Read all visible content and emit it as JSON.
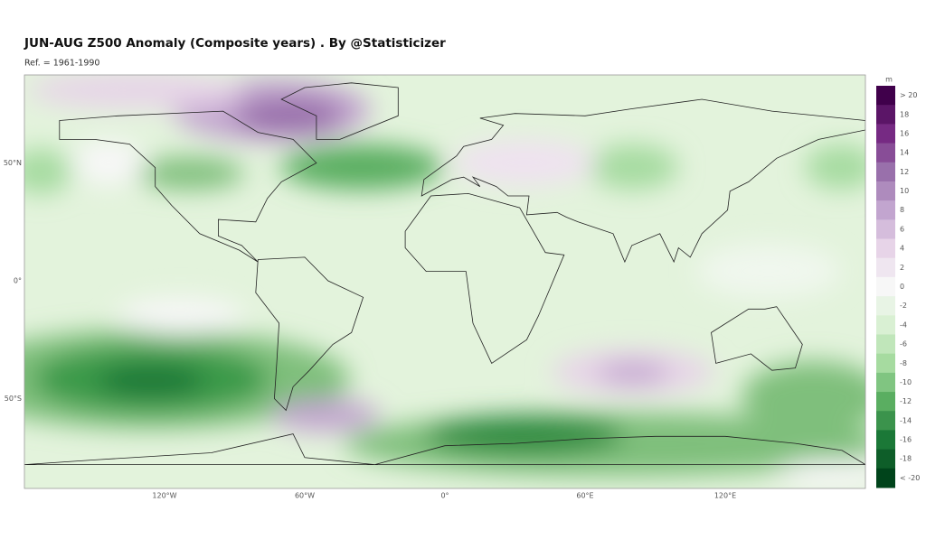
{
  "header": {
    "title": "JUN-AUG Z500 Anomaly (Composite years) . By @Statisticizer",
    "subtitle": "Ref. = 1961-1990"
  },
  "map": {
    "x_labels": [
      "120°W",
      "60°W",
      "0°",
      "60°E",
      "120°E"
    ],
    "y_labels": [
      "50°N",
      "0°",
      "50°S"
    ]
  },
  "colorbar": {
    "unit": "m",
    "labels": [
      "> 20",
      "18",
      "16",
      "14",
      "12",
      "10",
      "8",
      "6",
      "4",
      "2",
      "0",
      "-2",
      "-4",
      "-6",
      "-8",
      "-10",
      "-12",
      "-14",
      "-16",
      "-18",
      "< -20"
    ]
  }
}
